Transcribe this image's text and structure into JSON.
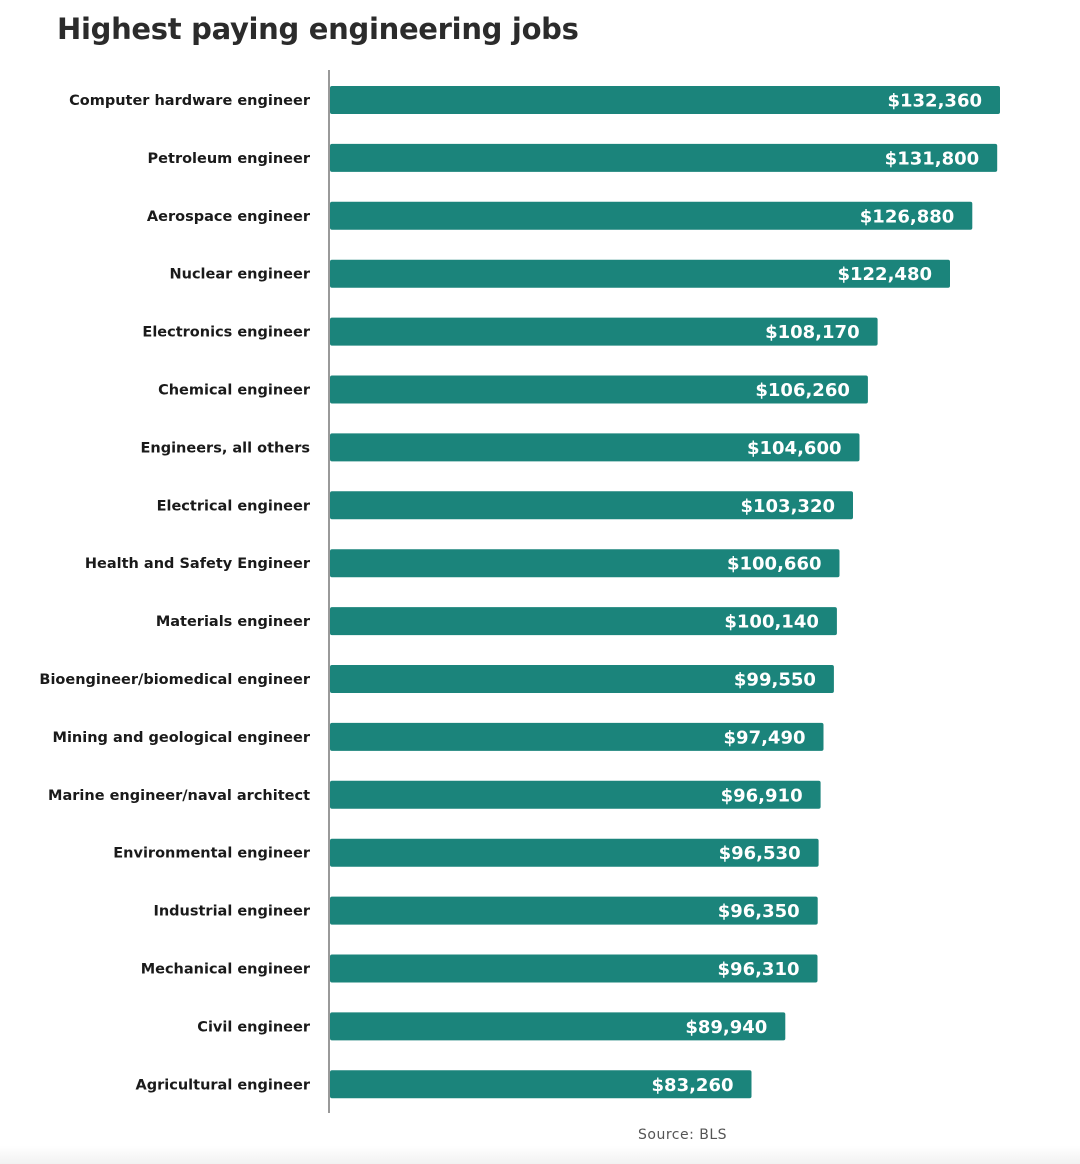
{
  "chart_data": {
    "type": "bar",
    "orientation": "horizontal",
    "title": "Highest paying engineering jobs",
    "categories": [
      "Computer hardware engineer",
      "Petroleum engineer",
      "Aerospace engineer",
      "Nuclear engineer",
      "Electronics engineer",
      "Chemical engineer",
      "Engineers, all others",
      "Electrical engineer",
      "Health and Safety Engineer",
      "Materials engineer",
      "Bioengineer/biomedical engineer",
      "Mining and geological engineer",
      "Marine engineer/naval architect",
      "Environmental engineer",
      "Industrial engineer",
      "Mechanical engineer",
      "Civil engineer",
      "Agricultural engineer"
    ],
    "values": [
      132360,
      131800,
      126880,
      122480,
      108170,
      106260,
      104600,
      103320,
      100660,
      100140,
      99550,
      97490,
      96910,
      96530,
      96350,
      96310,
      89940,
      83260
    ],
    "value_labels": [
      "$132,360",
      "$131,800",
      "$126,880",
      "$122,480",
      "$108,170",
      "$106,260",
      "$104,600",
      "$103,320",
      "$100,660",
      "$100,140",
      "$99,550",
      "$97,490",
      "$96,910",
      "$96,530",
      "$96,350",
      "$96,310",
      "$89,940",
      "$83,260"
    ],
    "xlim": [
      0,
      132360
    ],
    "grid": false,
    "legend": "none",
    "bar_color": "#1b847b",
    "source": "Source: BLS"
  }
}
